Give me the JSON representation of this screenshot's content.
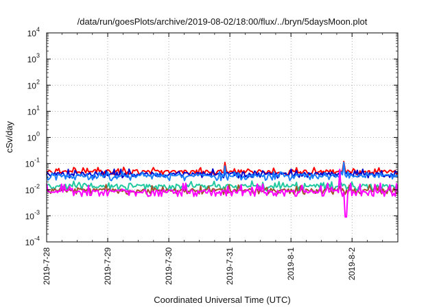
{
  "chart_data": {
    "type": "line",
    "title": "/data/run/goesPlots/archive/2019-08-02/18:00/flux/../bryn/5daysMoon.plot",
    "xlabel": "Coordinated Universal Time (UTC)",
    "ylabel": "cSv/day",
    "yscale": "log",
    "ylim": [
      0.0001,
      10000
    ],
    "y_ticks": [
      {
        "base": "10",
        "exp": "-4",
        "value": 0.0001
      },
      {
        "base": "10",
        "exp": "-3",
        "value": 0.001
      },
      {
        "base": "10",
        "exp": "-2",
        "value": 0.01
      },
      {
        "base": "10",
        "exp": "-1",
        "value": 0.1
      },
      {
        "base": "10",
        "exp": "0",
        "value": 1
      },
      {
        "base": "10",
        "exp": "1",
        "value": 10
      },
      {
        "base": "10",
        "exp": "2",
        "value": 100
      },
      {
        "base": "10",
        "exp": "3",
        "value": 1000
      },
      {
        "base": "10",
        "exp": "4",
        "value": 10000
      }
    ],
    "xlim": [
      "2019-07-28",
      "2019-08-02 18:00"
    ],
    "x_ticks": [
      {
        "label": "2019-7-28",
        "day": 0
      },
      {
        "label": "2019-7-29",
        "day": 1
      },
      {
        "label": "2019-7-30",
        "day": 2
      },
      {
        "label": "2019-7-31",
        "day": 3
      },
      {
        "label": "2019-8-1",
        "day": 4
      },
      {
        "label": "2019-8-2",
        "day": 5
      }
    ],
    "x_max_day": 5.75,
    "grid": true,
    "series": [
      {
        "color": "#ff0000",
        "base": 0.05,
        "lo": 0.036,
        "hi": 0.072,
        "dipdepth": 0.3,
        "spikes": [
          [
            2.92,
            0.11
          ],
          [
            4.86,
            0.12
          ]
        ]
      },
      {
        "color": "#0000cc",
        "base": 0.04,
        "lo": 0.028,
        "hi": 0.062,
        "dipdepth": 0.5,
        "spikes": [
          [
            4.86,
            0.1
          ]
        ]
      },
      {
        "color": "#1a7fff",
        "base": 0.034,
        "lo": 0.022,
        "hi": 0.05,
        "dipdepth": 0.5,
        "spikes": [
          [
            2.92,
            0.08
          ],
          [
            4.86,
            0.11
          ]
        ]
      },
      {
        "color": "#20c8a0",
        "base": 0.014,
        "lo": 0.009,
        "hi": 0.022,
        "dipdepth": 0.4,
        "spikes": []
      },
      {
        "color": "#a0522d",
        "base": 0.0095,
        "lo": 0.0065,
        "hi": 0.016,
        "dipdepth": 0.3,
        "spikes": []
      },
      {
        "color": "#ff00ff",
        "base": 0.0085,
        "lo": 0.0055,
        "hi": 0.018,
        "dipdepth": 0.2,
        "spikes": [
          [
            4.8,
            0.06
          ],
          [
            4.9,
            0.0009
          ]
        ]
      }
    ]
  }
}
